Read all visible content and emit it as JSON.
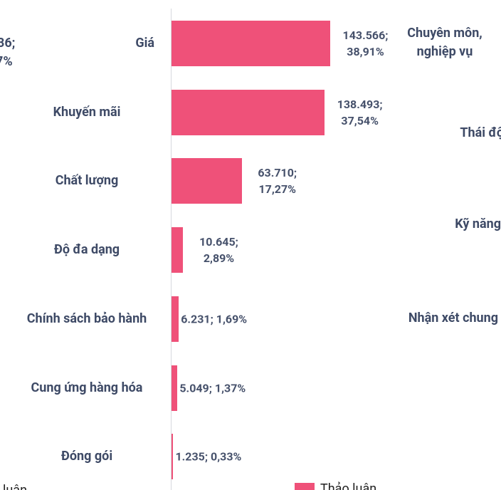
{
  "chart_data": {
    "type": "bar",
    "orientation": "horizontal",
    "categories": [
      "Giá",
      "Khuyến mãi",
      "Chất lượng",
      "Độ đa dạng",
      "Chính sách bảo hành",
      "Cung ứng hàng hóa",
      "Đóng gói"
    ],
    "series": [
      {
        "name": "Thảo luận",
        "color": "#ef5179",
        "values": [
          143566,
          138493,
          63710,
          10645,
          6231,
          5049,
          1235
        ],
        "value_labels": [
          "143.566; 38,91%",
          "138.493; 37,54%",
          "63.710; 17,27%",
          "10.645; 2,89%",
          "6.231; 1,69%",
          "5.049; 1,37%",
          "1.235; 0,33%"
        ]
      }
    ],
    "xlim": [
      0,
      200000
    ]
  },
  "clipped_texts": {
    "left": [
      "36;",
      "7%"
    ],
    "bottom_left": "luận",
    "right_categories": [
      "Chuyên môn, nghiệp vụ",
      "Thái độ",
      "Kỹ năng",
      "Nhận xét chung"
    ]
  }
}
